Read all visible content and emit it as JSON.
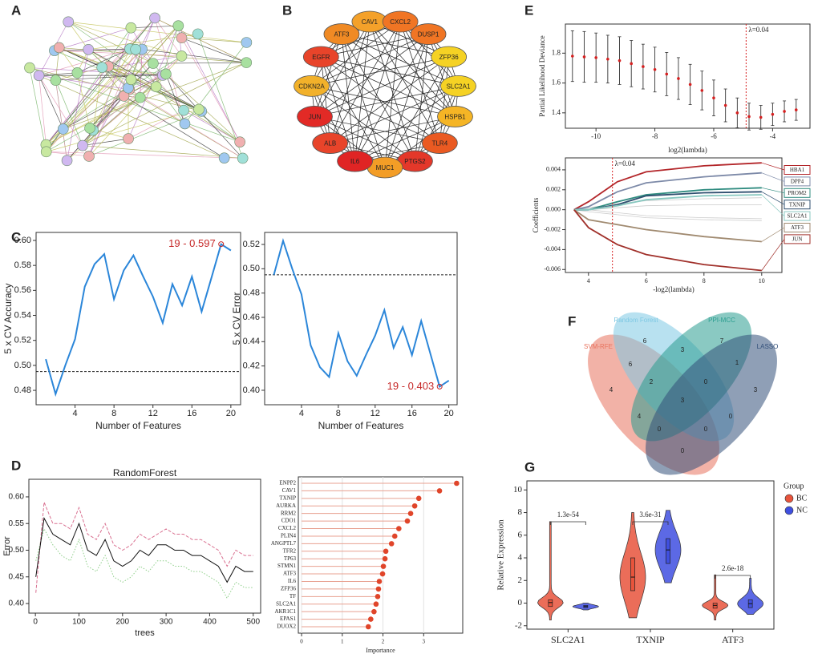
{
  "panel_labels": [
    "A",
    "B",
    "C",
    "D",
    "E",
    "F",
    "G"
  ],
  "network_b": {
    "nodes": [
      {
        "label": "CAV1",
        "color": "#f4a12a"
      },
      {
        "label": "CXCL2",
        "color": "#f07524"
      },
      {
        "label": "DUSP1",
        "color": "#f07524"
      },
      {
        "label": "ZFP36",
        "color": "#f5d224"
      },
      {
        "label": "SLC2A1",
        "color": "#f5d224"
      },
      {
        "label": "HSPB1",
        "color": "#f5b525"
      },
      {
        "label": "TLR4",
        "color": "#ea5a22"
      },
      {
        "label": "PTGS2",
        "color": "#e4382a"
      },
      {
        "label": "MUC1",
        "color": "#f39d26"
      },
      {
        "label": "IL6",
        "color": "#e02424"
      },
      {
        "label": "ALB",
        "color": "#e8442a"
      },
      {
        "label": "JUN",
        "color": "#e22a26"
      },
      {
        "label": "CDKN2A",
        "color": "#f2b12a"
      },
      {
        "label": "EGFR",
        "color": "#e8442a"
      },
      {
        "label": "ATF3",
        "color": "#f08a24"
      }
    ]
  },
  "chart_data": [
    {
      "type": "line",
      "x": [
        1,
        2,
        3,
        4,
        5,
        6,
        7,
        8,
        9,
        10,
        11,
        12,
        13,
        14,
        15,
        16,
        17,
        18,
        19,
        20
      ],
      "series": [
        {
          "color": "#2b86d9",
          "values": [
            0.505,
            0.477,
            0.5,
            0.521,
            0.563,
            0.581,
            0.589,
            0.553,
            0.576,
            0.588,
            0.571,
            0.555,
            0.534,
            0.565,
            0.548,
            0.571,
            0.543,
            0.57,
            0.597,
            0.592
          ]
        }
      ],
      "xlim": [
        0,
        21
      ],
      "ylim": [
        0.4685,
        0.6064
      ],
      "xticks": [
        4,
        8,
        12,
        16,
        20
      ],
      "yticks": [
        0.48,
        {
          "value": 0.5,
          "label": "0.50"
        },
        0.52,
        0.54,
        0.56,
        0.58,
        {
          "value": 0.6,
          "label": "0.60"
        }
      ],
      "xlabel": "Number of Features",
      "ylabel": "5 x CV Accuracy",
      "hline": 0.495,
      "annotation": {
        "text": "19 - 0.597",
        "x": 19,
        "y": 0.597,
        "color": "#c62828"
      }
    },
    {
      "type": "line",
      "x": [
        1,
        2,
        3,
        4,
        5,
        6,
        7,
        8,
        9,
        10,
        11,
        12,
        13,
        14,
        15,
        16,
        17,
        18,
        19,
        20
      ],
      "series": [
        {
          "color": "#2b86d9",
          "values": [
            0.495,
            0.523,
            0.5,
            0.479,
            0.437,
            0.419,
            0.411,
            0.447,
            0.424,
            0.412,
            0.429,
            0.445,
            0.466,
            0.435,
            0.452,
            0.429,
            0.457,
            0.43,
            0.403,
            0.408
          ]
        }
      ],
      "xlim": [
        0,
        20.9
      ],
      "ylim": [
        0.3881,
        0.5299
      ],
      "xticks": [
        4,
        8,
        12,
        16,
        20
      ],
      "yticks": [
        {
          "value": 0.4,
          "label": "0.40"
        },
        0.42,
        0.44,
        0.46,
        0.48,
        {
          "value": 0.5,
          "label": "0.50"
        },
        0.52
      ],
      "xlabel": "Number of Features",
      "ylabel": "5 x CV Error",
      "hline": 0.495,
      "annotation": {
        "text": "19 - 0.403",
        "x": 19,
        "y": 0.403,
        "color": "#c62828"
      }
    },
    {
      "type": "line",
      "title": "RandomForest",
      "x": [
        1,
        20,
        40,
        60,
        80,
        100,
        120,
        140,
        160,
        180,
        200,
        220,
        240,
        260,
        280,
        300,
        320,
        340,
        360,
        380,
        400,
        420,
        440,
        460,
        480,
        500
      ],
      "series": [
        {
          "color": "#d97090",
          "dash": "dashed",
          "values": [
            0.42,
            0.59,
            0.55,
            0.55,
            0.54,
            0.58,
            0.53,
            0.52,
            0.55,
            0.51,
            0.5,
            0.51,
            0.53,
            0.52,
            0.53,
            0.54,
            0.53,
            0.53,
            0.52,
            0.52,
            0.51,
            0.5,
            0.47,
            0.5,
            0.49,
            0.49
          ]
        },
        {
          "color": "#8fcf8a",
          "dash": "dotted",
          "values": [
            0.48,
            0.54,
            0.51,
            0.49,
            0.48,
            0.52,
            0.47,
            0.46,
            0.49,
            0.45,
            0.44,
            0.45,
            0.47,
            0.46,
            0.48,
            0.48,
            0.47,
            0.47,
            0.46,
            0.46,
            0.45,
            0.44,
            0.41,
            0.44,
            0.43,
            0.43
          ]
        },
        {
          "color": "#111111",
          "dash": "solid",
          "values": [
            0.45,
            0.56,
            0.53,
            0.52,
            0.51,
            0.55,
            0.5,
            0.49,
            0.52,
            0.48,
            0.47,
            0.48,
            0.5,
            0.49,
            0.51,
            0.51,
            0.5,
            0.5,
            0.49,
            0.49,
            0.48,
            0.47,
            0.44,
            0.47,
            0.46,
            0.46
          ]
        }
      ],
      "xlim": [
        -15,
        517
      ],
      "ylim": [
        0.382,
        0.633
      ],
      "xticks": [
        0,
        100,
        200,
        300,
        400,
        500
      ],
      "yticks": [
        {
          "value": 0.4,
          "label": "0.40"
        },
        0.45,
        {
          "value": 0.5,
          "label": "0.50"
        },
        0.55,
        {
          "value": 0.6,
          "label": "0.60"
        }
      ],
      "xlabel": "trees",
      "ylabel": "Error"
    },
    {
      "type": "lollipop",
      "color": "#e0452a",
      "categories": [
        "ENPP2",
        "CAV1",
        "TXNIP",
        "AURKA",
        "RRM2",
        "CDO1",
        "CXCL2",
        "PLIN4",
        "ANGPTL7",
        "TFR2",
        "TP63",
        "STMN1",
        "ATF3",
        "IL6",
        "ZFP36",
        "TF",
        "SLC2A1",
        "AKR1C1",
        "EPAS1",
        "DUOX2"
      ],
      "values": [
        3.81,
        3.39,
        2.88,
        2.78,
        2.68,
        2.6,
        2.39,
        2.29,
        2.21,
        2.07,
        2.05,
        2.01,
        1.99,
        1.91,
        1.89,
        1.87,
        1.83,
        1.78,
        1.7,
        1.64
      ],
      "xlim": [
        -0.08,
        3.96
      ],
      "xticks": [
        0,
        1,
        2,
        3
      ],
      "xlabel": "Importance"
    },
    {
      "type": "errorbar",
      "color": "#d62020",
      "x": [
        -10.8,
        -10.4,
        -10,
        -9.6,
        -9.2,
        -8.8,
        -8.4,
        -8,
        -7.6,
        -7.2,
        -6.8,
        -6.4,
        -6,
        -5.6,
        -5.2,
        -4.8,
        -4.4,
        -4,
        -3.6,
        -3.2
      ],
      "values": [
        1.78,
        1.775,
        1.77,
        1.76,
        1.75,
        1.73,
        1.71,
        1.69,
        1.66,
        1.63,
        1.59,
        1.55,
        1.5,
        1.45,
        1.4,
        1.375,
        1.37,
        1.39,
        1.41,
        1.42
      ],
      "errors": [
        0.17,
        0.17,
        0.165,
        0.16,
        0.16,
        0.155,
        0.15,
        0.15,
        0.145,
        0.14,
        0.135,
        0.13,
        0.12,
        0.11,
        0.1,
        0.09,
        0.08,
        0.075,
        0.07,
        0.07
      ],
      "xlim": [
        -11.04,
        -2.73
      ],
      "ylim": [
        1.297,
        1.995
      ],
      "xticks": [
        -10,
        -8,
        -6,
        -4
      ],
      "yticks": [
        1.4,
        1.6,
        1.8
      ],
      "xlabel": "log2(lambda)",
      "ylabel": "Partial Likelihood Deviance",
      "vline": {
        "x": -4.9,
        "label": "λ=0.04"
      }
    },
    {
      "type": "line",
      "x": [
        3.5,
        4,
        5,
        6,
        8,
        10
      ],
      "series": [
        {
          "color": "#cccccc",
          "values": [
            0,
            0.0002,
            0.0006,
            0.0009,
            0.0011,
            0.0012
          ]
        },
        {
          "color": "#cccccc",
          "values": [
            0,
            -0.0002,
            -0.0005,
            -0.0008,
            -0.001,
            -0.0011
          ]
        },
        {
          "color": "#cccccc",
          "values": [
            0,
            0,
            0.0002,
            0.0004,
            0.0005,
            0.0005
          ]
        },
        {
          "color": "#cccccc",
          "values": [
            0,
            0,
            -0.0003,
            -0.0006,
            -0.0008,
            -0.0009
          ]
        },
        {
          "name": "HBA1",
          "color": "#b3262a",
          "values": [
            0,
            0.0008,
            0.0028,
            0.0038,
            0.0044,
            0.0047
          ]
        },
        {
          "name": "DPP4",
          "color": "#7d8aa8",
          "values": [
            0,
            0.0003,
            0.0018,
            0.0027,
            0.0033,
            0.0037
          ]
        },
        {
          "name": "PROM2",
          "color": "#2e8b7f",
          "values": [
            0,
            0,
            0.0008,
            0.0015,
            0.002,
            0.0022
          ]
        },
        {
          "name": "TXNIP",
          "color": "#2f4f6f",
          "values": [
            0,
            0,
            0.0005,
            0.0014,
            0.0017,
            0.0018
          ]
        },
        {
          "name": "SLC2A1",
          "color": "#88c8c0",
          "values": [
            0,
            0,
            0.0004,
            0.001,
            0.0014,
            0.0015
          ]
        },
        {
          "name": "ATF3",
          "color": "#a08a70",
          "values": [
            0,
            -0.001,
            -0.0015,
            -0.002,
            -0.0027,
            -0.0032
          ]
        },
        {
          "name": "JUN",
          "color": "#a0302a",
          "values": [
            0,
            -0.0018,
            -0.0035,
            -0.0045,
            -0.0055,
            -0.0061
          ]
        }
      ],
      "xlim": [
        3.2,
        10.7
      ],
      "ylim": [
        -0.0063,
        0.0052
      ],
      "xticks": [
        4,
        6,
        8,
        10
      ],
      "yticks": [
        -0.006,
        -0.004,
        -0.002,
        {
          "value": 0,
          "label": "0.000"
        },
        0.002,
        0.004
      ],
      "xlabel": "-log2(lambda)",
      "ylabel": "Coefficients",
      "vline": {
        "x": 4.83,
        "label": "λ=0.04"
      }
    },
    {
      "type": "violin",
      "categories": [
        "SLC2A1",
        "TXNIP",
        "ATF3"
      ],
      "series": [
        {
          "name": "BC",
          "color": "#e8543c",
          "min": [
            -1.5,
            -1.3,
            -1.5
          ],
          "q1": [
            -0.3,
            1.1,
            -0.45
          ],
          "median": [
            0.05,
            2.3,
            -0.2
          ],
          "q3": [
            0.3,
            4,
            0
          ],
          "max": [
            7.2,
            8,
            2.5
          ]
        },
        {
          "name": "NC",
          "color": "#3f4fe0",
          "min": [
            -0.6,
            1.8,
            -1
          ],
          "q1": [
            -0.4,
            3.5,
            -0.4
          ],
          "median": [
            -0.3,
            4.7,
            -0.05
          ],
          "q3": [
            -0.2,
            5.7,
            0.3
          ],
          "max": [
            0,
            8.2,
            2.2
          ]
        }
      ],
      "pvalues": [
        "1.3e-54",
        "3.6e-31",
        "2.6e-18"
      ],
      "legend_title": "Group",
      "ylim": [
        -2.3,
        10.8
      ],
      "yticks": [
        -2,
        0,
        2,
        4,
        6,
        8,
        10
      ],
      "ylabel": "Relative Expression"
    }
  ],
  "venn": {
    "sets": [
      {
        "label": "SVM-RFE",
        "color": "#e8735f"
      },
      {
        "label": "Random Forest",
        "color": "#7ec8e3"
      },
      {
        "label": "PPI-MCC",
        "color": "#2a9d8f"
      },
      {
        "label": "LASSO",
        "color": "#33507a"
      }
    ],
    "regions": [
      6,
      3,
      7,
      1,
      4,
      6,
      2,
      0,
      3,
      3,
      4,
      0,
      0,
      0,
      0
    ]
  }
}
